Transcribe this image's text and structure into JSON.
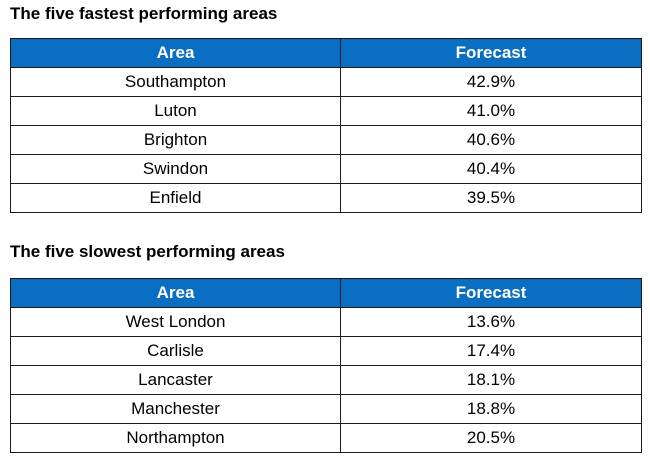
{
  "fastest": {
    "title": "The five fastest performing areas",
    "headers": {
      "area": "Area",
      "forecast": "Forecast"
    },
    "rows": [
      {
        "area": "Southampton",
        "forecast": "42.9%"
      },
      {
        "area": "Luton",
        "forecast": "41.0%"
      },
      {
        "area": "Brighton",
        "forecast": "40.6%"
      },
      {
        "area": "Swindon",
        "forecast": "40.4%"
      },
      {
        "area": "Enfield",
        "forecast": "39.5%"
      }
    ]
  },
  "slowest": {
    "title": "The five slowest performing areas",
    "headers": {
      "area": "Area",
      "forecast": "Forecast"
    },
    "rows": [
      {
        "area": "West London",
        "forecast": "13.6%"
      },
      {
        "area": "Carlisle",
        "forecast": "17.4%"
      },
      {
        "area": "Lancaster",
        "forecast": "18.1%"
      },
      {
        "area": "Manchester",
        "forecast": "18.8%"
      },
      {
        "area": "Northampton",
        "forecast": "20.5%"
      }
    ]
  },
  "colors": {
    "header_background": "#0a6fc2",
    "header_text": "#ffffff",
    "border": "#1b1b1b"
  }
}
